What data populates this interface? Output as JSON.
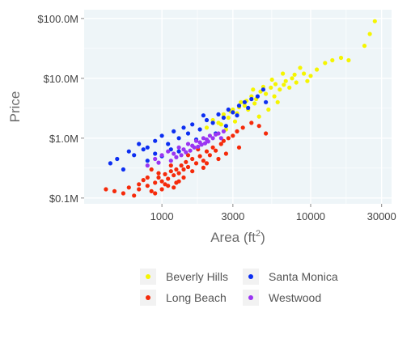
{
  "chart_data": {
    "type": "scatter",
    "title": "",
    "xlabel": "Area (ft",
    "xlabel_sup": "2",
    "xlabel_suffix": ")",
    "ylabel": "Price",
    "x_scale": "log",
    "y_scale": "log",
    "xlim": [
      300,
      35000
    ],
    "ylim": [
      80000,
      140000000
    ],
    "x_ticks": [
      {
        "value": 1000,
        "label": "1000"
      },
      {
        "value": 3000,
        "label": "3000"
      },
      {
        "value": 10000,
        "label": "10000"
      },
      {
        "value": 30000,
        "label": "30000"
      }
    ],
    "y_ticks": [
      {
        "value": 100000,
        "label": "$0.1M"
      },
      {
        "value": 1000000,
        "label": "$1.0M"
      },
      {
        "value": 10000000,
        "label": "$10.0M"
      },
      {
        "value": 100000000,
        "label": "$100.0M"
      }
    ],
    "grid": true,
    "legend_position": "bottom",
    "background": "#eef5f8",
    "series": [
      {
        "name": "Beverly Hills",
        "color": "#f5f500",
        "points": [
          [
            2000,
            1500000
          ],
          [
            2200,
            2000000
          ],
          [
            2400,
            1800000
          ],
          [
            2600,
            2500000
          ],
          [
            2800,
            2200000
          ],
          [
            3000,
            3000000
          ],
          [
            3200,
            2600000
          ],
          [
            3400,
            4000000
          ],
          [
            3600,
            3500000
          ],
          [
            3800,
            3000000
          ],
          [
            4000,
            5000000
          ],
          [
            4300,
            4500000
          ],
          [
            4600,
            6000000
          ],
          [
            5000,
            5500000
          ],
          [
            5400,
            7000000
          ],
          [
            5800,
            8000000
          ],
          [
            6200,
            6500000
          ],
          [
            6800,
            9000000
          ],
          [
            7500,
            10000000
          ],
          [
            8000,
            8500000
          ],
          [
            9000,
            12000000
          ],
          [
            10000,
            11000000
          ],
          [
            11000,
            14000000
          ],
          [
            12500,
            18000000
          ],
          [
            14000,
            20000000
          ],
          [
            16000,
            22000000
          ],
          [
            18000,
            20000000
          ],
          [
            2500,
            1700000
          ],
          [
            2900,
            2800000
          ],
          [
            3300,
            3300000
          ],
          [
            3700,
            4200000
          ],
          [
            4200,
            3800000
          ],
          [
            4800,
            7200000
          ],
          [
            5500,
            9500000
          ],
          [
            6500,
            12000000
          ],
          [
            7200,
            7000000
          ],
          [
            8500,
            15000000
          ],
          [
            9500,
            9000000
          ],
          [
            23000,
            35000000
          ],
          [
            25000,
            55000000
          ],
          [
            27000,
            90000000
          ],
          [
            4500,
            2300000
          ],
          [
            5200,
            3000000
          ],
          [
            6000,
            4000000
          ],
          [
            3100,
            1900000
          ],
          [
            2700,
            1400000
          ],
          [
            4100,
            6500000
          ],
          [
            5700,
            5000000
          ],
          [
            6600,
            7800000
          ],
          [
            7800,
            11500000
          ]
        ]
      },
      {
        "name": "Long Beach",
        "color": "#f52a0a",
        "points": [
          [
            420,
            140000
          ],
          [
            480,
            130000
          ],
          [
            550,
            120000
          ],
          [
            600,
            150000
          ],
          [
            650,
            110000
          ],
          [
            700,
            170000
          ],
          [
            750,
            200000
          ],
          [
            800,
            160000
          ],
          [
            850,
            130000
          ],
          [
            900,
            180000
          ],
          [
            950,
            220000
          ],
          [
            1000,
            190000
          ],
          [
            1050,
            250000
          ],
          [
            1100,
            210000
          ],
          [
            1150,
            280000
          ],
          [
            1200,
            240000
          ],
          [
            1250,
            300000
          ],
          [
            1300,
            260000
          ],
          [
            1350,
            350000
          ],
          [
            1400,
            300000
          ],
          [
            1450,
            400000
          ],
          [
            1500,
            330000
          ],
          [
            1600,
            450000
          ],
          [
            1700,
            380000
          ],
          [
            1800,
            500000
          ],
          [
            1900,
            420000
          ],
          [
            2000,
            600000
          ],
          [
            2100,
            520000
          ],
          [
            2200,
            700000
          ],
          [
            2300,
            620000
          ],
          [
            2500,
            800000
          ],
          [
            2600,
            900000
          ],
          [
            2800,
            1000000
          ],
          [
            3000,
            1100000
          ],
          [
            3200,
            1300000
          ],
          [
            3500,
            1500000
          ],
          [
            4000,
            1800000
          ],
          [
            4500,
            1600000
          ],
          [
            900,
            120000
          ],
          [
            1000,
            140000
          ],
          [
            1100,
            160000
          ],
          [
            1200,
            150000
          ],
          [
            1300,
            190000
          ],
          [
            1400,
            220000
          ],
          [
            700,
            140000
          ],
          [
            800,
            220000
          ],
          [
            1600,
            280000
          ],
          [
            1900,
            320000
          ],
          [
            2400,
            450000
          ],
          [
            1500,
            520000
          ],
          [
            1750,
            650000
          ],
          [
            1250,
            180000
          ],
          [
            1050,
            170000
          ],
          [
            950,
            260000
          ],
          [
            2700,
            550000
          ],
          [
            3300,
            700000
          ],
          [
            5000,
            1200000
          ],
          [
            2000,
            380000
          ],
          [
            850,
            300000
          ],
          [
            1150,
            350000
          ]
        ]
      },
      {
        "name": "Santa Monica",
        "color": "#0c2ef2",
        "points": [
          [
            450,
            380000
          ],
          [
            500,
            450000
          ],
          [
            550,
            300000
          ],
          [
            600,
            600000
          ],
          [
            650,
            520000
          ],
          [
            700,
            800000
          ],
          [
            750,
            650000
          ],
          [
            800,
            700000
          ],
          [
            900,
            900000
          ],
          [
            1000,
            1100000
          ],
          [
            1100,
            800000
          ],
          [
            1200,
            1300000
          ],
          [
            1300,
            1000000
          ],
          [
            1400,
            1500000
          ],
          [
            1500,
            1200000
          ],
          [
            1600,
            1700000
          ],
          [
            1800,
            1400000
          ],
          [
            2000,
            2000000
          ],
          [
            2200,
            1800000
          ],
          [
            2400,
            2500000
          ],
          [
            2600,
            2200000
          ],
          [
            2800,
            3000000
          ],
          [
            3000,
            2700000
          ],
          [
            3300,
            3500000
          ],
          [
            3600,
            4000000
          ],
          [
            4000,
            4500000
          ],
          [
            4400,
            5000000
          ],
          [
            5000,
            4000000
          ],
          [
            1900,
            2400000
          ],
          [
            1700,
            950000
          ],
          [
            1300,
            600000
          ],
          [
            1000,
            500000
          ],
          [
            800,
            420000
          ],
          [
            2300,
            1200000
          ],
          [
            2700,
            1600000
          ],
          [
            3200,
            2400000
          ],
          [
            3800,
            3200000
          ],
          [
            4800,
            6500000
          ],
          [
            1150,
            650000
          ],
          [
            900,
            550000
          ]
        ]
      },
      {
        "name": "Westwood",
        "color": "#9a35f2",
        "points": [
          [
            800,
            350000
          ],
          [
            900,
            450000
          ],
          [
            1000,
            520000
          ],
          [
            1100,
            600000
          ],
          [
            1200,
            550000
          ],
          [
            1300,
            700000
          ],
          [
            1400,
            650000
          ],
          [
            1500,
            800000
          ],
          [
            1600,
            750000
          ],
          [
            1700,
            900000
          ],
          [
            1800,
            850000
          ],
          [
            1900,
            1000000
          ],
          [
            2000,
            950000
          ],
          [
            2100,
            1100000
          ],
          [
            2200,
            1000000
          ],
          [
            2400,
            1200000
          ],
          [
            2600,
            1300000
          ],
          [
            1250,
            480000
          ],
          [
            1450,
            580000
          ],
          [
            1650,
            700000
          ],
          [
            1850,
            780000
          ],
          [
            2050,
            880000
          ],
          [
            1150,
            420000
          ],
          [
            1350,
            520000
          ],
          [
            1550,
            620000
          ],
          [
            1750,
            720000
          ],
          [
            1950,
            820000
          ],
          [
            2300,
            1150000
          ],
          [
            950,
            390000
          ],
          [
            2500,
            1000000
          ]
        ]
      }
    ]
  }
}
